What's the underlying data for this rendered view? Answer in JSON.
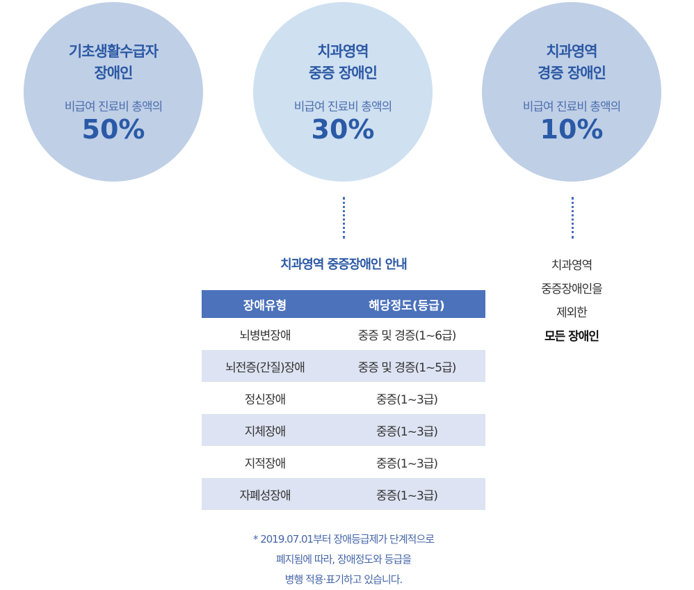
{
  "circles": [
    {
      "title_line1": "기초생활수급자",
      "title_line2": "장애인",
      "subtitle": "비급여 진료비 총액의",
      "percent": "50%"
    },
    {
      "title_line1": "치과영역",
      "title_line2": "중증 장애인",
      "subtitle": "비급여 진료비 총액의",
      "percent": "30%"
    },
    {
      "title_line1": "치과영역",
      "title_line2": "경증 장애인",
      "subtitle": "비급여 진료비 총액의",
      "percent": "10%"
    }
  ],
  "guide": {
    "title": "치과영역 중증장애인 안내",
    "headers": [
      "장애유형",
      "해당정도(등급)"
    ],
    "rows": [
      {
        "type": "뇌병변장애",
        "grade": "중증 및 경증(1~6급)"
      },
      {
        "type": "뇌전증(간질)장애",
        "grade": "중증 및 경증(1~5급)"
      },
      {
        "type": "정신장애",
        "grade": "중증(1~3급)"
      },
      {
        "type": "지체장애",
        "grade": "중증(1~3급)"
      },
      {
        "type": "지적장애",
        "grade": "중증(1~3급)"
      },
      {
        "type": "자폐성장애",
        "grade": "중증(1~3급)"
      }
    ]
  },
  "right_note": {
    "line1": "치과영역",
    "line2": "중증장애인을",
    "line3": "제외한",
    "line4": "모든 장애인"
  },
  "footnote": {
    "line1": "* 2019.07.01부터 장애등급제가 단계적으로",
    "line2": "폐지됨에 따라, 장애정도와 등급을",
    "line3": "병행 적용·표기하고 있습니다."
  }
}
